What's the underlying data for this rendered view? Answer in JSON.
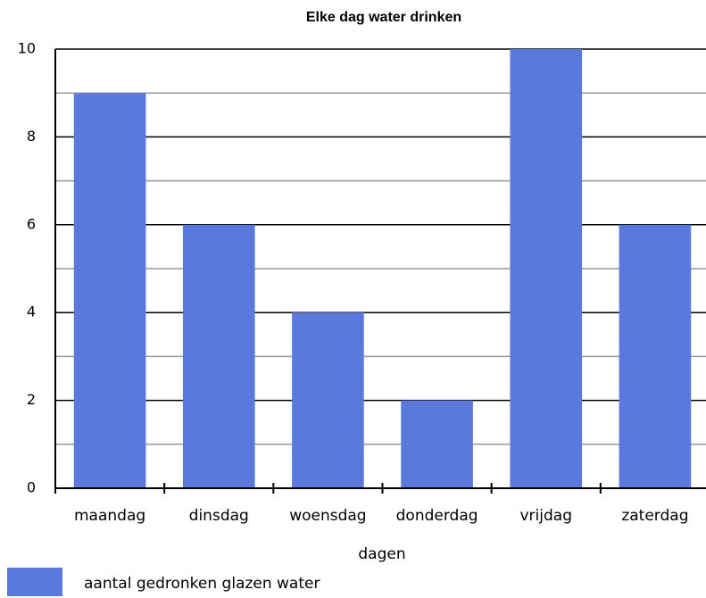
{
  "chart_data": {
    "type": "bar",
    "title": "Elke dag water drinken",
    "categories": [
      "maandag",
      "dinsdag",
      "woensdag",
      "donderdag",
      "vrijdag",
      "zaterdag"
    ],
    "series": [
      {
        "name": "aantal gedronken glazen water",
        "color": "#5b78dc",
        "values": [
          9,
          6,
          4,
          2,
          10,
          6
        ]
      }
    ],
    "x_label": "dagen",
    "ylim": [
      0,
      10
    ],
    "yticks": [
      0,
      2,
      4,
      6,
      8,
      10
    ],
    "minor_yticks": [
      1,
      3,
      5,
      7,
      9
    ],
    "grid": true,
    "legend": "bottom-left"
  }
}
